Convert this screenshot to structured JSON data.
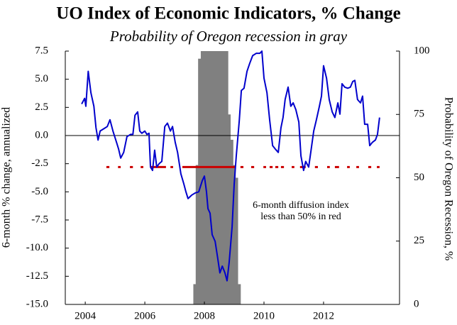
{
  "chart_data": {
    "type": "line",
    "title": "UO Index of Economic Indicators, % Change",
    "subtitle": "Probability of Oregon recession in gray",
    "y_label": "6-month % change, annualized",
    "y2_label": "Probability of Oregon Recession, %",
    "annotation": [
      "6-month diffusion index",
      "less than 50% in red"
    ],
    "xlim": [
      2003.33,
      2014.55
    ],
    "xticks": [
      2004,
      2006,
      2008,
      2010,
      2012
    ],
    "ylim": [
      -15,
      7.5
    ],
    "yticks": [
      {
        "value": -15,
        "label": "-15.0"
      },
      -12.5,
      {
        "value": -10,
        "label": "-10.0"
      },
      -7.5,
      {
        "value": -5,
        "label": "-5.0"
      },
      -2.5,
      {
        "value": 0,
        "label": "0.0"
      },
      2.5,
      {
        "value": 5,
        "label": "5.0"
      },
      7.5
    ],
    "y2lim": [
      0,
      100
    ],
    "y2ticks": [
      0,
      25,
      50,
      75,
      100
    ],
    "index": {
      "color": "#0000cc",
      "x": [
        2003.88,
        2003.98,
        2004.02,
        2004.1,
        2004.19,
        2004.29,
        2004.36,
        2004.43,
        2004.5,
        2004.62,
        2004.74,
        2004.83,
        2004.93,
        2005.05,
        2005.12,
        2005.19,
        2005.29,
        2005.4,
        2005.52,
        2005.6,
        2005.67,
        2005.76,
        2005.83,
        2005.9,
        2006.0,
        2006.07,
        2006.14,
        2006.19,
        2006.26,
        2006.33,
        2006.4,
        2006.48,
        2006.57,
        2006.67,
        2006.76,
        2006.86,
        2006.93,
        2007.02,
        2007.1,
        2007.21,
        2007.31,
        2007.38,
        2007.45,
        2007.57,
        2007.69,
        2007.81,
        2007.93,
        2008.0,
        2008.07,
        2008.12,
        2008.19,
        2008.26,
        2008.36,
        2008.43,
        2008.52,
        2008.6,
        2008.69,
        2008.76,
        2008.83,
        2008.93,
        2009.0,
        2009.07,
        2009.17,
        2009.24,
        2009.33,
        2009.43,
        2009.52,
        2009.62,
        2009.74,
        2009.86,
        2009.93,
        2010.0,
        2010.1,
        2010.19,
        2010.29,
        2010.38,
        2010.48,
        2010.57,
        2010.64,
        2010.71,
        2010.81,
        2010.9,
        2010.98,
        2011.07,
        2011.17,
        2011.24,
        2011.33,
        2011.4,
        2011.5,
        2011.57,
        2011.67,
        2011.76,
        2011.86,
        2011.93,
        2012.0,
        2012.1,
        2012.19,
        2012.29,
        2012.38,
        2012.48,
        2012.55,
        2012.62,
        2012.71,
        2012.81,
        2012.9,
        2012.98,
        2013.05,
        2013.14,
        2013.24,
        2013.31,
        2013.38,
        2013.48,
        2013.55,
        2013.64,
        2013.74,
        2013.81,
        2013.88
      ],
      "values": [
        2.8,
        3.3,
        2.6,
        5.7,
        3.8,
        2.6,
        0.7,
        -0.4,
        0.4,
        0.6,
        0.8,
        1.4,
        0.4,
        -0.6,
        -1.2,
        -2.0,
        -1.5,
        -0.1,
        0.1,
        0.1,
        1.8,
        2.1,
        0.4,
        0.2,
        0.4,
        0.1,
        0.2,
        -2.8,
        -3.1,
        -1.3,
        -2.8,
        -2.5,
        -2.3,
        0.8,
        1.1,
        0.4,
        0.8,
        -0.6,
        -1.5,
        -3.4,
        -4.3,
        -5.0,
        -5.6,
        -5.3,
        -5.1,
        -5.0,
        -4.0,
        -3.6,
        -5.0,
        -6.5,
        -6.9,
        -8.8,
        -9.4,
        -10.6,
        -12.2,
        -11.6,
        -12.2,
        -12.9,
        -11.3,
        -8.1,
        -4.3,
        -1.8,
        1.3,
        4.0,
        4.2,
        5.7,
        6.4,
        7.1,
        7.3,
        7.3,
        7.5,
        5.1,
        3.8,
        1.4,
        -0.9,
        -1.2,
        -1.5,
        0.7,
        1.6,
        3.2,
        4.3,
        2.6,
        2.9,
        2.3,
        1.2,
        -1.8,
        -3.1,
        -2.3,
        -2.8,
        -1.5,
        0.4,
        1.4,
        2.6,
        3.5,
        6.2,
        5.1,
        3.2,
        2.1,
        1.6,
        2.9,
        1.9,
        4.6,
        4.3,
        4.2,
        4.3,
        4.8,
        4.9,
        3.2,
        2.9,
        3.5,
        1.0,
        1.0,
        -0.9,
        -0.6,
        -0.4,
        0.1,
        1.6
      ]
    },
    "recession_probability": {
      "color": "#808080",
      "axis": "y2",
      "x": [
        2007.67,
        2007.75,
        2007.83,
        2007.92,
        2008.0,
        2008.08,
        2008.17,
        2008.25,
        2008.33,
        2008.42,
        2008.5,
        2008.58,
        2008.67,
        2008.75,
        2008.83,
        2008.92,
        2009.0,
        2009.08,
        2009.17
      ],
      "values": [
        8,
        55,
        97,
        100,
        100,
        100,
        100,
        100,
        100,
        100,
        100,
        100,
        100,
        100,
        75,
        65,
        55,
        50,
        8
      ]
    },
    "diffusion_below_50": {
      "color": "#cc0000",
      "level": -2.8,
      "ranges": [
        [
          2004.71,
          2004.81
        ],
        [
          2005.1,
          2005.19
        ],
        [
          2005.5,
          2005.6
        ],
        [
          2005.86,
          2005.95
        ],
        [
          2006.19,
          2006.71
        ],
        [
          2006.86,
          2006.95
        ],
        [
          2007.26,
          2009.02
        ],
        [
          2009.21,
          2009.31
        ],
        [
          2009.57,
          2009.67
        ],
        [
          2009.98,
          2010.07
        ],
        [
          2010.19,
          2010.29
        ],
        [
          2010.38,
          2010.48
        ],
        [
          2010.57,
          2010.67
        ],
        [
          2010.93,
          2011.02
        ],
        [
          2011.21,
          2011.4
        ],
        [
          2011.71,
          2011.81
        ],
        [
          2012.12,
          2012.21
        ],
        [
          2012.38,
          2012.52
        ],
        [
          2012.79,
          2012.88
        ],
        [
          2013.1,
          2013.19
        ],
        [
          2013.5,
          2013.6
        ],
        [
          2013.79,
          2013.88
        ]
      ]
    }
  }
}
